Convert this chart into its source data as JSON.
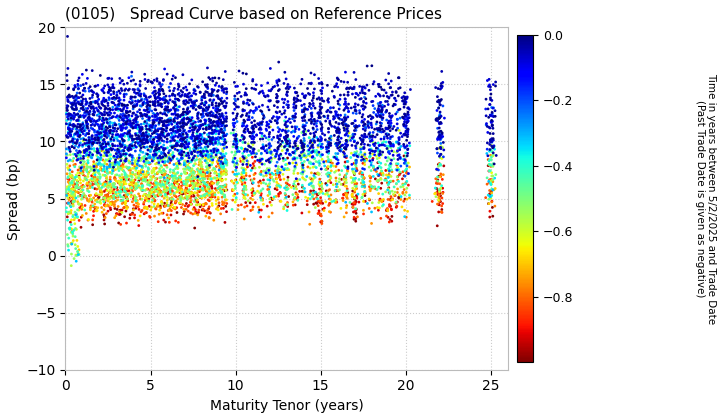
{
  "title": "(0105)   Spread Curve based on Reference Prices",
  "xlabel": "Maturity Tenor (years)",
  "ylabel": "Spread (bp)",
  "colorbar_label_line1": "Time in years between 5/2/2025 and Trade Date",
  "colorbar_label_line2": "(Past Trade Date is given as negative)",
  "xlim": [
    0,
    26
  ],
  "ylim": [
    -10,
    20
  ],
  "xticks": [
    0,
    5,
    10,
    15,
    20,
    25
  ],
  "yticks": [
    -10,
    -5,
    0,
    5,
    10,
    15,
    20
  ],
  "cmap": "jet_r",
  "clim": [
    -1.0,
    0.0
  ],
  "cticks": [
    0.0,
    -0.2,
    -0.4,
    -0.6,
    -0.8
  ],
  "background_color": "#ffffff",
  "grid_color": "#cccccc",
  "marker_size": 4,
  "seed": 42
}
